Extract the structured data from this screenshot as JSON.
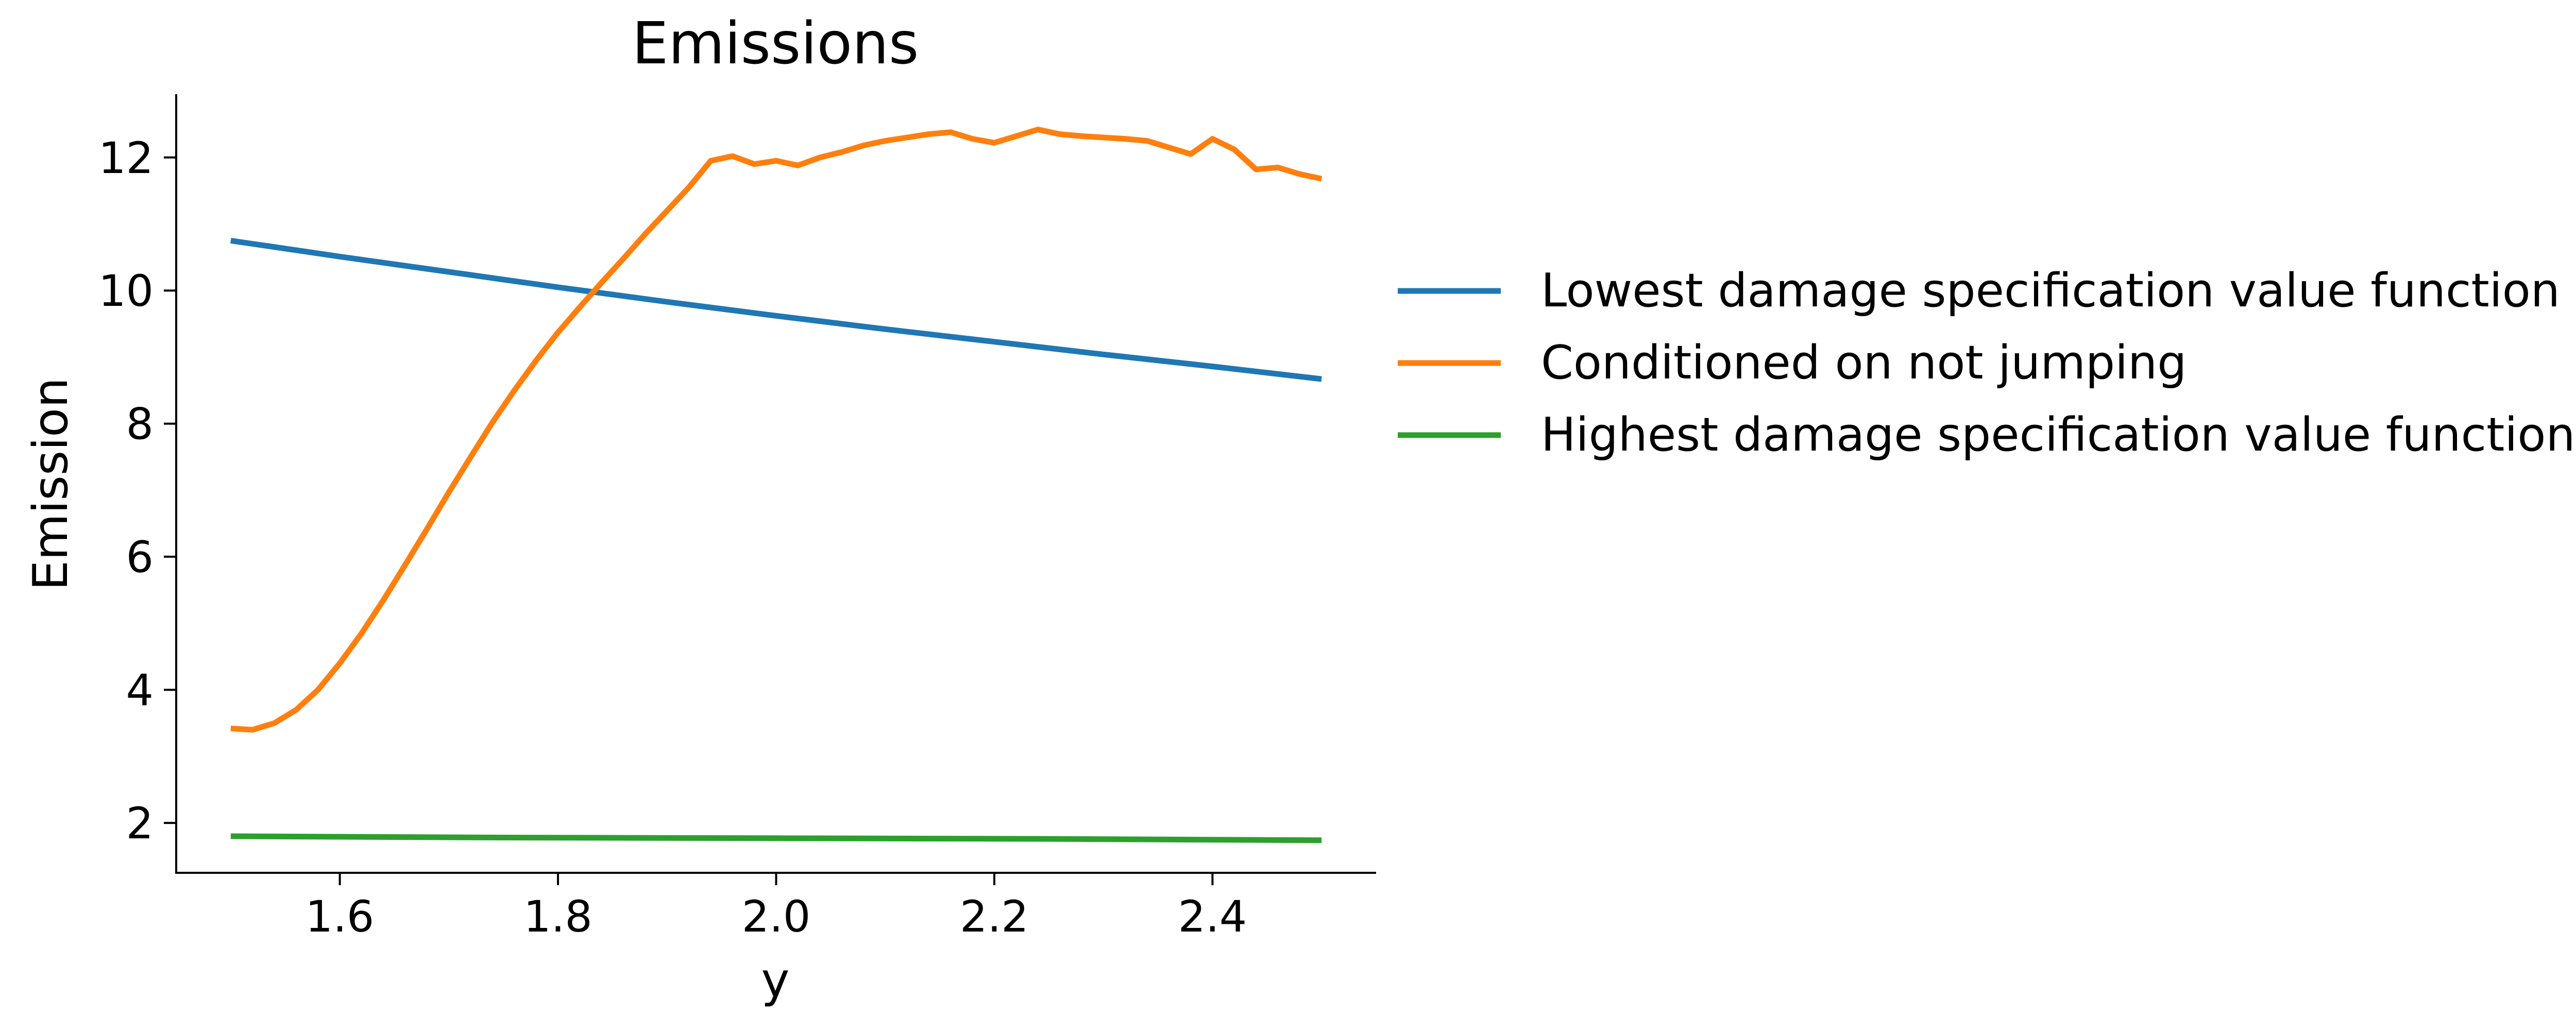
{
  "chart_data": {
    "type": "line",
    "title": "Emissions",
    "xlabel": "y",
    "ylabel": "Emission",
    "xlim": [
      1.45,
      2.55
    ],
    "ylim": [
      1.25,
      12.95
    ],
    "xticks": [
      1.6,
      1.8,
      2.0,
      2.2,
      2.4
    ],
    "xtick_labels": [
      "1.6",
      "1.8",
      "2.0",
      "2.2",
      "2.4"
    ],
    "yticks": [
      2,
      4,
      6,
      8,
      10,
      12
    ],
    "ytick_labels": [
      "2",
      "4",
      "6",
      "8",
      "10",
      "12"
    ],
    "grid": false,
    "legend_position": "right, outside plot",
    "series": [
      {
        "name": "Lowest damage specification value function",
        "color": "#1f77b4",
        "x": [
          1.5,
          1.6,
          1.7,
          1.8,
          1.9,
          2.0,
          2.1,
          2.2,
          2.3,
          2.4,
          2.5
        ],
        "y": [
          10.75,
          10.51,
          10.28,
          10.05,
          9.83,
          9.62,
          9.42,
          9.23,
          9.04,
          8.86,
          8.67
        ]
      },
      {
        "name": "Conditioned on not jumping",
        "color": "#ff7f0e",
        "x": [
          1.5,
          1.52,
          1.54,
          1.56,
          1.58,
          1.6,
          1.62,
          1.64,
          1.66,
          1.68,
          1.7,
          1.72,
          1.74,
          1.76,
          1.78,
          1.8,
          1.82,
          1.84,
          1.86,
          1.88,
          1.9,
          1.92,
          1.94,
          1.96,
          1.98,
          2.0,
          2.02,
          2.04,
          2.06,
          2.08,
          2.1,
          2.12,
          2.14,
          2.16,
          2.18,
          2.2,
          2.22,
          2.24,
          2.26,
          2.28,
          2.3,
          2.32,
          2.34,
          2.36,
          2.38,
          2.4,
          2.42,
          2.44,
          2.46,
          2.48,
          2.5
        ],
        "y": [
          3.42,
          3.4,
          3.5,
          3.7,
          4.0,
          4.4,
          4.85,
          5.35,
          5.88,
          6.42,
          6.97,
          7.5,
          8.02,
          8.5,
          8.95,
          9.37,
          9.75,
          10.12,
          10.48,
          10.85,
          11.2,
          11.55,
          11.95,
          12.02,
          11.9,
          11.95,
          11.88,
          12.0,
          12.08,
          12.18,
          12.25,
          12.3,
          12.35,
          12.38,
          12.28,
          12.22,
          12.32,
          12.42,
          12.35,
          12.32,
          12.3,
          12.28,
          12.25,
          12.15,
          12.05,
          12.28,
          12.12,
          11.82,
          11.85,
          11.75,
          11.68
        ]
      },
      {
        "name": "Highest damage specification value function",
        "color": "#2ca02c",
        "x": [
          1.5,
          1.75,
          2.0,
          2.25,
          2.5
        ],
        "y": [
          1.8,
          1.78,
          1.77,
          1.76,
          1.74
        ]
      }
    ]
  }
}
